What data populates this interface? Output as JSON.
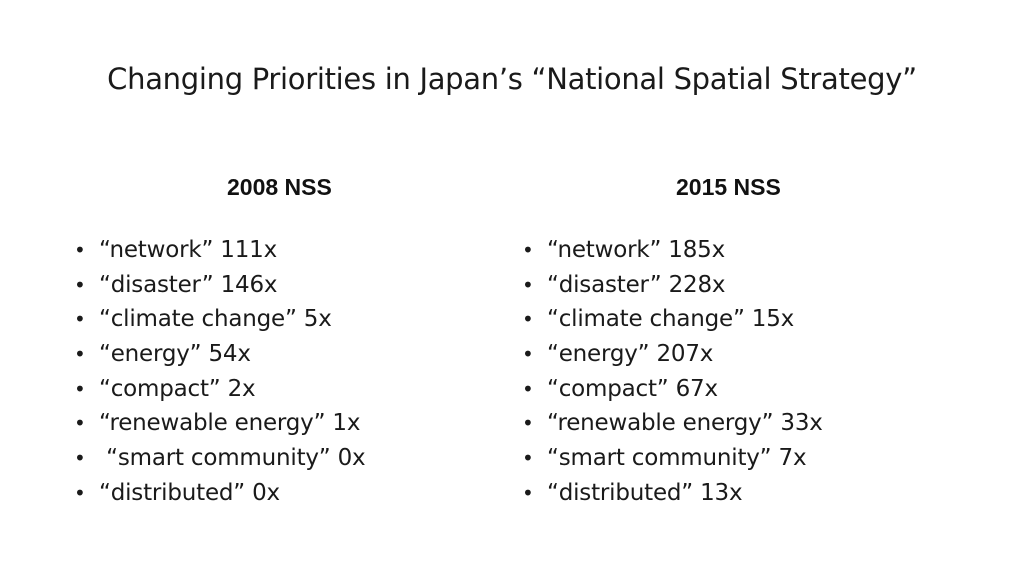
{
  "slide": {
    "title": "Changing Priorities in Japan’s “National Spatial Strategy”",
    "bullet_glyph": "•",
    "columns": [
      {
        "heading": "2008 NSS",
        "items": [
          "“network” 111x",
          "“disaster” 146x",
          "“climate change” 5x",
          "“energy” 54x",
          "“compact” 2x",
          "“renewable energy” 1x",
          " “smart community” 0x",
          "“distributed” 0x"
        ]
      },
      {
        "heading": "2015 NSS",
        "items": [
          "“network” 185x",
          "“disaster” 228x",
          "“climate change” 15x",
          "“energy” 207x",
          "“compact” 67x",
          "“renewable energy” 33x",
          "“smart community” 7x",
          "“distributed” 13x"
        ]
      }
    ]
  }
}
